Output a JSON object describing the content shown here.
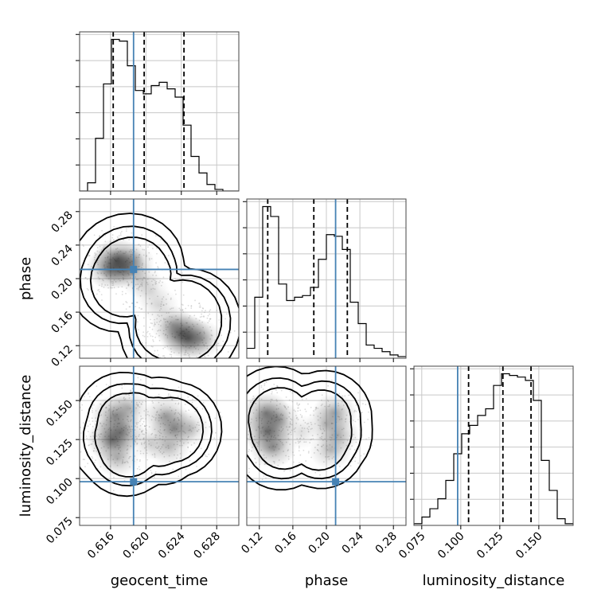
{
  "chart_data": {
    "type": "corner",
    "parameters": [
      "geocent_time",
      "phase",
      "luminosity_distance"
    ],
    "truths": {
      "geocent_time": 0.6186,
      "phase": 0.211,
      "luminosity_distance": 0.098
    },
    "quantiles": {
      "geocent_time": [
        0.6163,
        0.6198,
        0.6243
      ],
      "phase": [
        0.13,
        0.185,
        0.225
      ],
      "luminosity_distance": [
        0.105,
        0.127,
        0.145
      ]
    },
    "axes": {
      "geocent_time": {
        "lim": [
          0.6125,
          0.6305
        ],
        "ticks": [
          0.616,
          0.62,
          0.624,
          0.628
        ],
        "tick_labels": [
          "0.616",
          "0.620",
          "0.624",
          "0.628"
        ]
      },
      "phase": {
        "lim": [
          0.105,
          0.295
        ],
        "ticks": [
          0.12,
          0.16,
          0.2,
          0.24,
          0.28
        ],
        "tick_labels": [
          "0.12",
          "0.16",
          "0.20",
          "0.24",
          "0.28"
        ]
      },
      "luminosity_distance": {
        "lim": [
          0.07,
          0.172
        ],
        "ticks": [
          0.075,
          0.1,
          0.125,
          0.15
        ],
        "tick_labels": [
          "0.075",
          "0.100",
          "0.125",
          "0.150"
        ]
      }
    },
    "histograms": {
      "geocent_time": {
        "edges": [
          0.6125,
          0.6134,
          0.6143,
          0.6152,
          0.6161,
          0.617,
          0.6179,
          0.6188,
          0.6197,
          0.6206,
          0.6215,
          0.6224,
          0.6233,
          0.6242,
          0.6251,
          0.626,
          0.6269,
          0.6278,
          0.6287,
          0.6296,
          0.6305
        ],
        "counts": [
          0,
          0.05,
          0.32,
          0.65,
          0.92,
          0.91,
          0.76,
          0.61,
          0.59,
          0.64,
          0.66,
          0.62,
          0.57,
          0.4,
          0.21,
          0.11,
          0.04,
          0.01,
          0,
          0
        ]
      },
      "phase": {
        "edges": [
          0.105,
          0.1145,
          0.124,
          0.1335,
          0.143,
          0.1525,
          0.162,
          0.1715,
          0.181,
          0.1905,
          0.2,
          0.2095,
          0.219,
          0.2285,
          0.238,
          0.2475,
          0.257,
          0.2665,
          0.276,
          0.2855,
          0.295
        ],
        "counts": [
          0.06,
          0.37,
          0.92,
          0.86,
          0.45,
          0.35,
          0.37,
          0.38,
          0.43,
          0.6,
          0.75,
          0.74,
          0.66,
          0.34,
          0.21,
          0.08,
          0.06,
          0.04,
          0.02,
          0.01
        ]
      },
      "luminosity_distance": {
        "edges": [
          0.07,
          0.0751,
          0.0802,
          0.0853,
          0.0904,
          0.0955,
          0.1006,
          0.1057,
          0.1108,
          0.1159,
          0.121,
          0.1261,
          0.1312,
          0.1363,
          0.1414,
          0.1465,
          0.1516,
          0.1567,
          0.1618,
          0.1669,
          0.172
        ],
        "counts": [
          0.01,
          0.05,
          0.1,
          0.16,
          0.27,
          0.43,
          0.55,
          0.6,
          0.66,
          0.7,
          0.84,
          0.91,
          0.9,
          0.89,
          0.87,
          0.75,
          0.39,
          0.21,
          0.04,
          0.01
        ]
      }
    },
    "density": {
      "phase_vs_geocent_time": [
        {
          "x": 0.6168,
          "y": 0.222,
          "w": 1.0
        },
        {
          "x": 0.616,
          "y": 0.212,
          "w": 0.85
        },
        {
          "x": 0.6176,
          "y": 0.212,
          "w": 0.7
        },
        {
          "x": 0.6185,
          "y": 0.22,
          "w": 0.55
        },
        {
          "x": 0.6195,
          "y": 0.198,
          "w": 0.35
        },
        {
          "x": 0.6205,
          "y": 0.185,
          "w": 0.25
        },
        {
          "x": 0.6215,
          "y": 0.168,
          "w": 0.3
        },
        {
          "x": 0.623,
          "y": 0.145,
          "w": 0.55
        },
        {
          "x": 0.624,
          "y": 0.135,
          "w": 0.85
        },
        {
          "x": 0.6248,
          "y": 0.129,
          "w": 1.0
        },
        {
          "x": 0.6262,
          "y": 0.128,
          "w": 0.55
        }
      ],
      "luminosity_distance_vs_geocent_time": [
        {
          "x": 0.6162,
          "y": 0.125,
          "w": 1.0
        },
        {
          "x": 0.6165,
          "y": 0.14,
          "w": 0.8
        },
        {
          "x": 0.6172,
          "y": 0.13,
          "w": 0.75
        },
        {
          "x": 0.6168,
          "y": 0.113,
          "w": 0.55
        },
        {
          "x": 0.618,
          "y": 0.145,
          "w": 0.5
        },
        {
          "x": 0.6222,
          "y": 0.14,
          "w": 0.65
        },
        {
          "x": 0.6232,
          "y": 0.132,
          "w": 0.8
        },
        {
          "x": 0.6226,
          "y": 0.12,
          "w": 0.5
        },
        {
          "x": 0.6205,
          "y": 0.123,
          "w": 0.35
        },
        {
          "x": 0.625,
          "y": 0.132,
          "w": 0.4
        }
      ],
      "luminosity_distance_vs_phase": [
        {
          "x": 0.13,
          "y": 0.13,
          "w": 1.0
        },
        {
          "x": 0.128,
          "y": 0.142,
          "w": 0.85
        },
        {
          "x": 0.136,
          "y": 0.12,
          "w": 0.75
        },
        {
          "x": 0.142,
          "y": 0.138,
          "w": 0.6
        },
        {
          "x": 0.21,
          "y": 0.142,
          "w": 0.65
        },
        {
          "x": 0.213,
          "y": 0.128,
          "w": 0.6
        },
        {
          "x": 0.205,
          "y": 0.118,
          "w": 0.5
        },
        {
          "x": 0.2,
          "y": 0.135,
          "w": 0.4
        },
        {
          "x": 0.17,
          "y": 0.13,
          "w": 0.25
        }
      ]
    }
  }
}
